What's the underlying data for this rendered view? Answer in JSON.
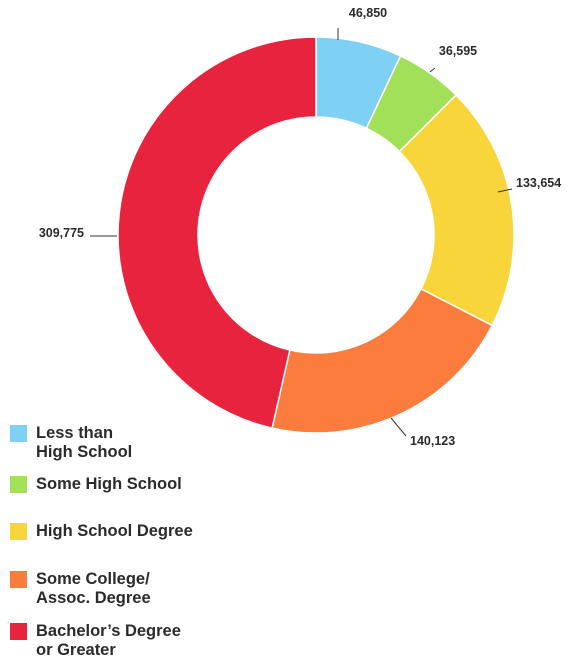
{
  "chart_data": {
    "type": "pie",
    "donut": true,
    "title": "",
    "legend_position": "bottom-left",
    "slices": [
      {
        "label": [
          "Less than",
          "High School"
        ],
        "value": 46850,
        "display": "46,850",
        "color": "#7fd0f5"
      },
      {
        "label": [
          "Some High School"
        ],
        "value": 36595,
        "display": "36,595",
        "color": "#a3e05a"
      },
      {
        "label": [
          "High School Degree"
        ],
        "value": 133654,
        "display": "133,654",
        "color": "#f8d53a"
      },
      {
        "label": [
          "Some College/",
          "Assoc. Degree"
        ],
        "value": 140123,
        "display": "140,123",
        "color": "#fc7c3e"
      },
      {
        "label": [
          "Bachelor’s Degree",
          "or Greater"
        ],
        "value": 309775,
        "display": "309,775",
        "color": "#e8233e"
      }
    ]
  }
}
